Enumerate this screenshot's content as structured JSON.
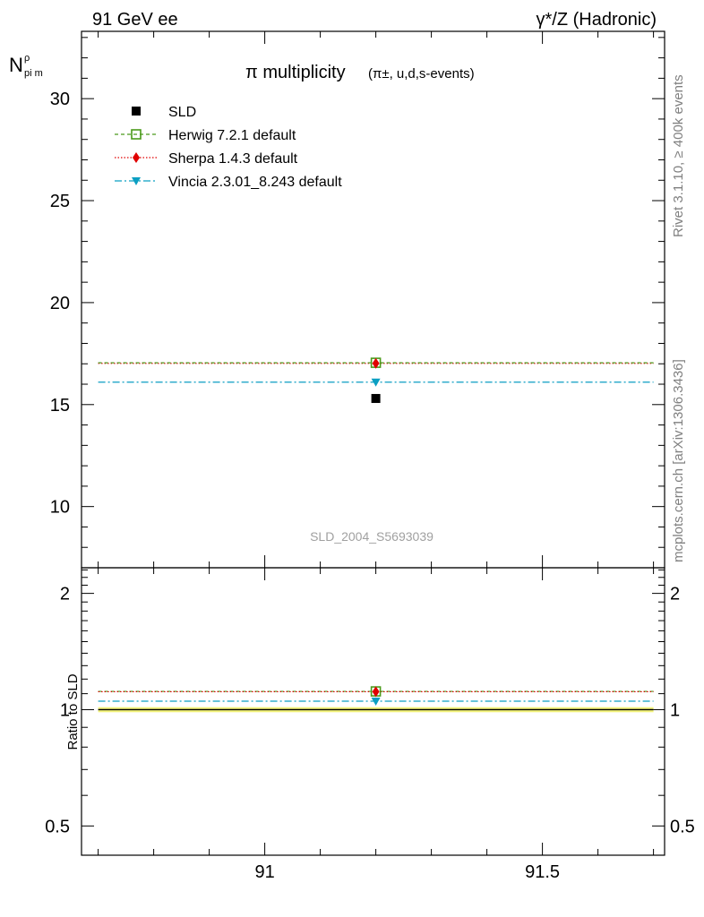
{
  "header": {
    "left": "91 GeV ee",
    "right": "γ*/Z (Hadronic)"
  },
  "side_labels": {
    "rivet": "Rivet 3.1.10, ≥ 400k events",
    "mcplots": "mcplots.cern.ch [arXiv:1306.3436]"
  },
  "chart_data": [
    {
      "type": "scatter",
      "title_main": "π multiplicity",
      "title_sub": "(π±, u,d,s-events)",
      "ylabel": "N_pi^pm",
      "watermark": "SLD_2004_S5693039",
      "xlim": [
        90.67,
        91.72
      ],
      "ylim": [
        7,
        33.3
      ],
      "y_ticks": [
        10,
        15,
        20,
        25,
        30
      ],
      "y_tick_labels": [
        "10",
        "15",
        "20",
        "25",
        "30"
      ],
      "legend_position": "top-left",
      "x_span": [
        90.7,
        91.7
      ],
      "x_point": 91.2,
      "series": [
        {
          "name": "SLD",
          "y": 15.3,
          "color": "#000000",
          "marker": "square",
          "style": "data"
        },
        {
          "name": "Herwig 7.2.1 default",
          "y": 17.05,
          "color": "#4a9a1a",
          "marker": "open-square",
          "style": "dashed"
        },
        {
          "name": "Sherpa 1.4.3 default",
          "y": 17.02,
          "color": "#e00000",
          "marker": "diamond",
          "style": "dotted"
        },
        {
          "name": "Vincia 2.3.01_8.243 default",
          "y": 16.1,
          "color": "#0b9fc2",
          "marker": "triangle-down",
          "style": "dashdot"
        }
      ]
    },
    {
      "type": "scatter",
      "ylabel": "Ratio to SLD",
      "xlim": [
        90.67,
        91.72
      ],
      "ylim": [
        0.42,
        2.33
      ],
      "y_ticks": [
        0.5,
        1,
        2
      ],
      "y_tick_labels": [
        "0.5",
        "1",
        "2"
      ],
      "x_ticks": [
        91,
        91.5
      ],
      "x_tick_labels": [
        "91",
        "91.5"
      ],
      "band": {
        "lo": 0.985,
        "hi": 1.015,
        "color": "#f2f27a"
      },
      "series": [
        {
          "name": "Herwig 7.2.1 default",
          "y": 1.115,
          "color": "#4a9a1a",
          "marker": "open-square",
          "style": "dashed"
        },
        {
          "name": "Sherpa 1.4.3 default",
          "y": 1.113,
          "color": "#e00000",
          "marker": "diamond",
          "style": "dotted"
        },
        {
          "name": "Vincia 2.3.01_8.243 default",
          "y": 1.052,
          "color": "#0b9fc2",
          "marker": "triangle-down",
          "style": "dashdot"
        }
      ]
    }
  ]
}
